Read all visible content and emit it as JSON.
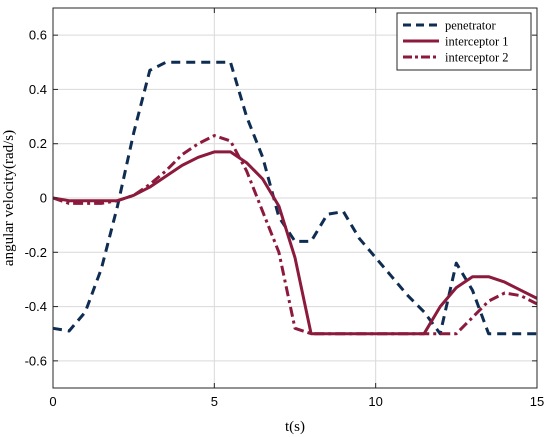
{
  "chart_data": {
    "type": "line",
    "title": "",
    "xlabel": "t(s)",
    "ylabel": "angular velocity(rad/s)",
    "xlim": [
      0,
      15
    ],
    "ylim": [
      -0.7,
      0.7
    ],
    "xticks": [
      0,
      5,
      10,
      15
    ],
    "yticks": [
      0.6,
      0.4,
      0.2,
      0,
      -0.2,
      -0.4,
      -0.6
    ],
    "xtick_labels": [
      "0",
      "5",
      "10",
      "15"
    ],
    "ytick_labels": [
      "0.6",
      "0.4",
      "0.2",
      "0",
      "-0.2",
      "-0.4",
      "-0.6"
    ],
    "grid": true,
    "legend_position": "top-right",
    "series": [
      {
        "name": "penetrator",
        "color": "#0f2d52",
        "style": "dashed",
        "x": [
          0,
          0.5,
          1,
          1.5,
          2,
          2.5,
          3,
          3.5,
          4,
          4.5,
          5,
          5.5,
          6,
          6.5,
          7,
          7.5,
          8,
          8.5,
          9,
          9.5,
          10,
          10.5,
          11,
          11.5,
          12,
          12.5,
          13,
          13.5,
          14,
          14.5,
          15
        ],
        "y": [
          -0.48,
          -0.49,
          -0.42,
          -0.26,
          -0.03,
          0.24,
          0.47,
          0.5,
          0.5,
          0.5,
          0.5,
          0.5,
          0.3,
          0.15,
          -0.07,
          -0.16,
          -0.16,
          -0.06,
          -0.05,
          -0.15,
          -0.22,
          -0.29,
          -0.36,
          -0.42,
          -0.5,
          -0.24,
          -0.34,
          -0.5,
          -0.5,
          -0.5,
          -0.5
        ]
      },
      {
        "name": "interceptor 1",
        "color": "#8b1a3c",
        "style": "solid",
        "x": [
          0,
          0.5,
          1,
          1.5,
          2,
          2.5,
          3,
          3.5,
          4,
          4.5,
          5,
          5.5,
          6,
          6.5,
          7,
          7.5,
          8,
          8.5,
          9,
          9.5,
          10,
          10.5,
          11,
          11.5,
          12,
          12.5,
          13,
          13.5,
          14,
          14.5,
          15
        ],
        "y": [
          0,
          -0.01,
          -0.01,
          -0.01,
          -0.01,
          0.01,
          0.04,
          0.08,
          0.12,
          0.15,
          0.17,
          0.17,
          0.13,
          0.07,
          -0.03,
          -0.22,
          -0.5,
          -0.5,
          -0.5,
          -0.5,
          -0.5,
          -0.5,
          -0.5,
          -0.5,
          -0.4,
          -0.33,
          -0.29,
          -0.29,
          -0.31,
          -0.34,
          -0.37
        ]
      },
      {
        "name": "interceptor 2",
        "color": "#8b1a3c",
        "style": "dash-dot",
        "x": [
          0,
          0.5,
          1,
          1.5,
          2,
          2.5,
          3,
          3.5,
          4,
          4.5,
          5,
          5.5,
          6,
          6.5,
          7,
          7.5,
          8,
          8.5,
          9,
          9.5,
          10,
          10.5,
          11,
          11.5,
          12,
          12.5,
          13,
          13.5,
          14,
          14.5,
          15
        ],
        "y": [
          0,
          -0.02,
          -0.02,
          -0.02,
          -0.01,
          0.01,
          0.05,
          0.1,
          0.16,
          0.2,
          0.23,
          0.21,
          0.1,
          -0.05,
          -0.2,
          -0.48,
          -0.5,
          -0.5,
          -0.5,
          -0.5,
          -0.5,
          -0.5,
          -0.5,
          -0.5,
          -0.5,
          -0.5,
          -0.44,
          -0.38,
          -0.35,
          -0.36,
          -0.39
        ]
      }
    ]
  }
}
